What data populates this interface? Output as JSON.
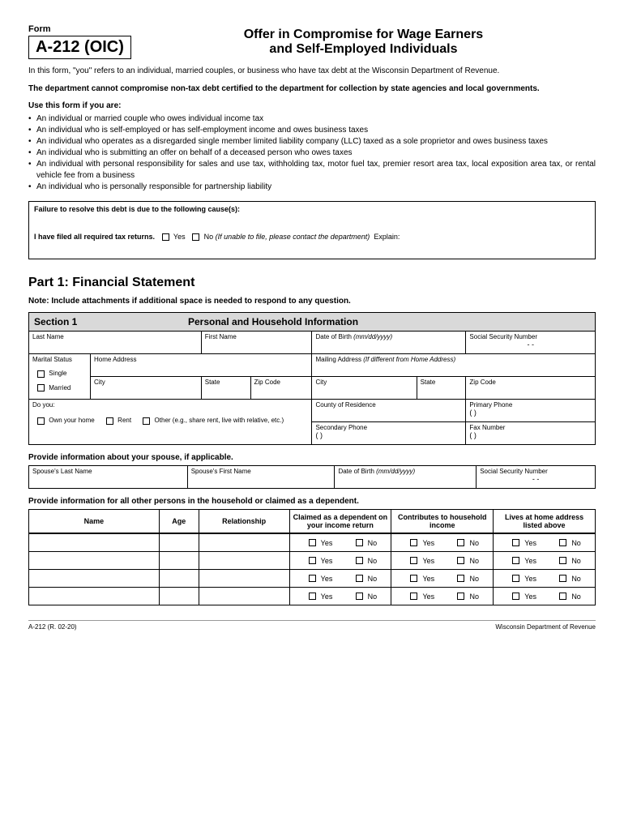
{
  "header": {
    "form_label": "Form",
    "form_code": "A-212 (OIC)",
    "title_line1": "Offer in Compromise for Wage Earners",
    "title_line2": "and Self-Employed Individuals"
  },
  "intro": "In this form, \"you\" refers to an individual, married couples, or business who have tax debt at the Wisconsin Department of Revenue.",
  "bold_note": "The department cannot compromise non-tax debt certified to the department for collection by state agencies and local governments.",
  "use_heading": "Use this form if you are:",
  "bullets": [
    "An individual or married couple who owes individual income tax",
    "An individual who is self-employed or has self-employment income and owes business taxes",
    "An individual who operates as a disregarded single member limited liability company (LLC) taxed as a sole proprietor and owes business taxes",
    "An individual who is submitting an offer on behalf of a deceased person who owes taxes",
    "An individual with personal responsibility for sales and use tax, withholding tax, motor fuel tax, premier resort area tax, local exposition area tax, or rental vehicle fee from a business",
    "An individual who is personally responsible for partnership liability"
  ],
  "cause": {
    "question": "Failure to resolve this debt is due to the following cause(s):",
    "filed_label": "I have filed all required tax returns.",
    "yes": "Yes",
    "no": "No",
    "no_note": "(If unable to file, please contact the department)",
    "explain": "Explain:"
  },
  "part1": {
    "title": "Part 1:  Financial Statement",
    "note": "Note:  Include attachments if additional space is needed to respond to any question."
  },
  "section1": {
    "num": "Section 1",
    "title": "Personal and Household Information",
    "labels": {
      "last_name": "Last Name",
      "first_name": "First Name",
      "dob": "Date of Birth",
      "dob_fmt": "(mm/dd/yyyy)",
      "ssn": "Social Security Number",
      "ssn_dashes": "-          -",
      "marital": "Marital Status",
      "single": "Single",
      "married": "Married",
      "home_addr": "Home Address",
      "mail_addr": "Mailing Address",
      "mail_note": "(If different from Home Address)",
      "city": "City",
      "state": "State",
      "zip": "Zip Code",
      "do_you": "Do you:",
      "own": "Own your home",
      "rent": "Rent",
      "other": "Other (e.g., share rent, live with relative, etc.)",
      "county": "County of Residence",
      "primary_phone": "Primary Phone",
      "secondary_phone": "Secondary Phone",
      "fax": "Fax Number",
      "paren": "(          )"
    }
  },
  "spouse": {
    "heading": "Provide information about your spouse, if applicable.",
    "last": "Spouse's Last Name",
    "first": "Spouse's First Name",
    "dob": "Date of Birth",
    "dob_fmt": "(mm/dd/yyyy)",
    "ssn": "Social Security Number",
    "ssn_dashes": "-          -"
  },
  "household": {
    "heading": "Provide information for all other persons in the household or claimed as a dependent.",
    "cols": {
      "name": "Name",
      "age": "Age",
      "relationship": "Relationship",
      "claimed": "Claimed as a dependent on your income return",
      "contributes": "Contributes to household income",
      "lives": "Lives at home address listed above"
    },
    "yes": "Yes",
    "no": "No",
    "rows": 4
  },
  "footer": {
    "left": "A-212 (R. 02-20)",
    "right": "Wisconsin Department of Revenue"
  },
  "colors": {
    "section_bg": "#d9d9d9",
    "text": "#000000",
    "bg": "#ffffff"
  }
}
